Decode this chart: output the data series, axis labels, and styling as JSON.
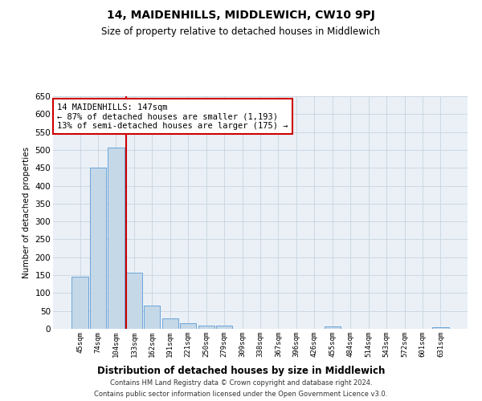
{
  "title": "14, MAIDENHILLS, MIDDLEWICH, CW10 9PJ",
  "subtitle": "Size of property relative to detached houses in Middlewich",
  "xlabel": "Distribution of detached houses by size in Middlewich",
  "ylabel": "Number of detached properties",
  "categories": [
    "45sqm",
    "74sqm",
    "104sqm",
    "133sqm",
    "162sqm",
    "191sqm",
    "221sqm",
    "250sqm",
    "279sqm",
    "309sqm",
    "338sqm",
    "367sqm",
    "396sqm",
    "426sqm",
    "455sqm",
    "484sqm",
    "514sqm",
    "543sqm",
    "572sqm",
    "601sqm",
    "631sqm"
  ],
  "values": [
    145,
    450,
    507,
    158,
    65,
    30,
    15,
    10,
    8,
    0,
    0,
    0,
    0,
    0,
    6,
    0,
    0,
    0,
    0,
    0,
    5
  ],
  "bar_color": "#c5d8e8",
  "bar_edge_color": "#5b9bd5",
  "red_line_index": 3,
  "red_line_color": "#cc0000",
  "annotation_text": "14 MAIDENHILLS: 147sqm\n← 87% of detached houses are smaller (1,193)\n13% of semi-detached houses are larger (175) →",
  "annotation_box_color": "#ffffff",
  "annotation_box_edge": "#cc0000",
  "ylim": [
    0,
    650
  ],
  "yticks": [
    0,
    50,
    100,
    150,
    200,
    250,
    300,
    350,
    400,
    450,
    500,
    550,
    600,
    650
  ],
  "bg_color": "#ffffff",
  "axes_bg_color": "#eaf0f6",
  "grid_color": "#c8d4e0",
  "footer_line1": "Contains HM Land Registry data © Crown copyright and database right 2024.",
  "footer_line2": "Contains public sector information licensed under the Open Government Licence v3.0."
}
